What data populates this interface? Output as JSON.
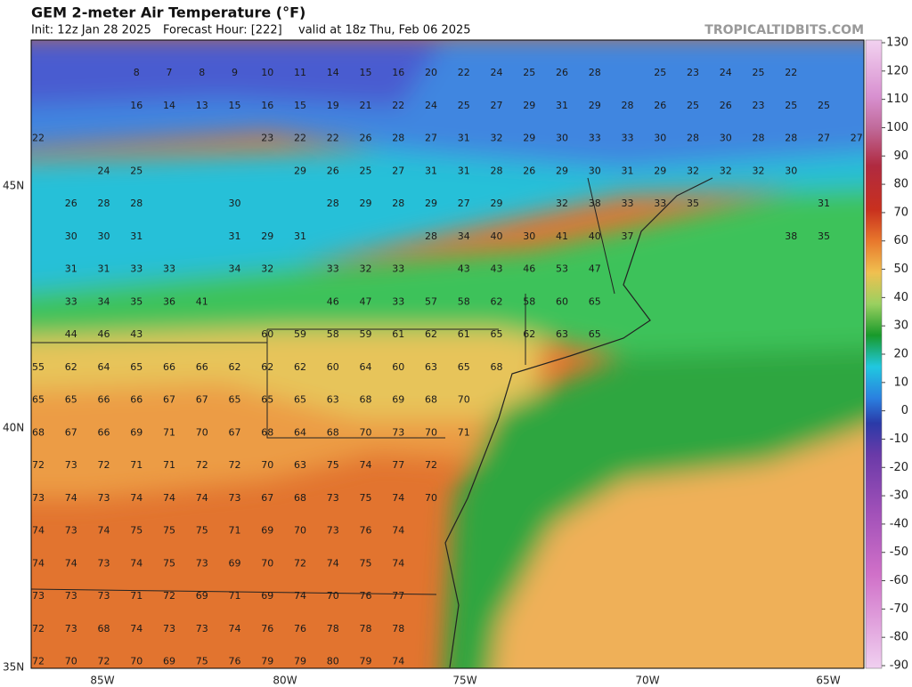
{
  "header": {
    "title": "GEM 2-meter Air Temperature (°F)",
    "init": "Init: 12z Jan 28 2025",
    "forecast_hour": "Forecast Hour: [222]",
    "valid": "valid at 18z Thu, Feb 06 2025",
    "watermark": "TROPICALTIDBITS.COM"
  },
  "map": {
    "lat_labels": [
      "45N",
      "40N",
      "35N"
    ],
    "lon_labels": [
      "85W",
      "80W",
      "75W",
      "70W",
      "65W"
    ],
    "rows": [
      [
        null,
        null,
        null,
        8,
        7,
        8,
        9,
        10,
        11,
        14,
        15,
        16,
        20,
        22,
        24,
        25,
        26,
        28,
        null,
        25,
        23,
        24,
        25,
        22,
        null,
        null
      ],
      [
        null,
        null,
        null,
        16,
        14,
        13,
        15,
        16,
        15,
        19,
        21,
        22,
        24,
        25,
        27,
        29,
        31,
        29,
        28,
        26,
        25,
        26,
        23,
        25,
        25,
        null
      ],
      [
        22,
        null,
        null,
        null,
        null,
        null,
        null,
        23,
        22,
        22,
        26,
        28,
        27,
        31,
        32,
        29,
        30,
        33,
        33,
        30,
        28,
        30,
        28,
        28,
        27,
        27
      ],
      [
        null,
        null,
        24,
        25,
        null,
        null,
        null,
        null,
        29,
        26,
        25,
        27,
        31,
        31,
        28,
        26,
        29,
        30,
        31,
        29,
        32,
        32,
        32,
        30,
        null,
        null
      ],
      [
        null,
        26,
        28,
        28,
        null,
        null,
        30,
        null,
        null,
        28,
        29,
        28,
        29,
        27,
        29,
        null,
        32,
        38,
        33,
        33,
        35,
        null,
        null,
        null,
        31,
        null
      ],
      [
        null,
        30,
        30,
        31,
        null,
        null,
        31,
        29,
        31,
        null,
        null,
        null,
        28,
        34,
        40,
        30,
        41,
        40,
        37,
        null,
        null,
        null,
        null,
        38,
        35,
        null
      ],
      [
        null,
        31,
        31,
        33,
        33,
        null,
        34,
        32,
        null,
        33,
        32,
        33,
        null,
        43,
        43,
        46,
        53,
        47,
        null,
        null,
        null,
        null,
        null,
        null,
        null,
        null
      ],
      [
        null,
        33,
        34,
        35,
        36,
        41,
        null,
        null,
        null,
        46,
        47,
        33,
        57,
        58,
        62,
        58,
        60,
        65,
        null,
        null,
        null,
        null,
        null,
        null,
        null,
        null
      ],
      [
        null,
        44,
        46,
        43,
        null,
        null,
        null,
        60,
        59,
        58,
        59,
        61,
        62,
        61,
        65,
        62,
        63,
        65,
        null,
        null,
        null,
        null,
        null,
        null,
        null,
        null
      ],
      [
        55,
        62,
        64,
        65,
        66,
        66,
        62,
        62,
        62,
        60,
        64,
        60,
        63,
        65,
        68,
        null,
        null,
        null,
        null,
        null,
        null,
        null,
        null,
        null,
        null,
        null
      ],
      [
        65,
        65,
        66,
        66,
        67,
        67,
        65,
        65,
        65,
        63,
        68,
        69,
        68,
        70,
        null,
        null,
        null,
        null,
        null,
        null,
        null,
        null,
        null,
        null,
        null,
        null
      ],
      [
        68,
        67,
        66,
        69,
        71,
        70,
        67,
        68,
        64,
        68,
        70,
        73,
        70,
        71,
        null,
        null,
        null,
        null,
        null,
        null,
        null,
        null,
        null,
        null,
        null,
        null
      ],
      [
        72,
        73,
        72,
        71,
        71,
        72,
        72,
        70,
        63,
        75,
        74,
        77,
        72,
        null,
        null,
        null,
        null,
        null,
        null,
        null,
        null,
        null,
        null,
        null,
        null,
        null
      ],
      [
        73,
        74,
        73,
        74,
        74,
        74,
        73,
        67,
        68,
        73,
        75,
        74,
        70,
        null,
        null,
        null,
        null,
        null,
        null,
        null,
        null,
        null,
        null,
        null,
        null,
        null
      ],
      [
        74,
        73,
        74,
        75,
        75,
        75,
        71,
        69,
        70,
        73,
        76,
        74,
        null,
        null,
        null,
        null,
        null,
        null,
        null,
        null,
        null,
        null,
        null,
        null,
        null,
        null
      ],
      [
        74,
        74,
        73,
        74,
        75,
        73,
        69,
        70,
        72,
        74,
        75,
        74,
        null,
        null,
        null,
        null,
        null,
        null,
        null,
        null,
        null,
        null,
        null,
        null,
        null,
        null
      ],
      [
        73,
        73,
        73,
        71,
        72,
        69,
        71,
        69,
        74,
        70,
        76,
        77,
        null,
        null,
        null,
        null,
        null,
        null,
        null,
        null,
        null,
        null,
        null,
        null,
        null,
        null
      ],
      [
        72,
        73,
        68,
        74,
        73,
        73,
        74,
        76,
        76,
        78,
        78,
        78,
        null,
        null,
        null,
        null,
        null,
        null,
        null,
        null,
        null,
        null,
        null,
        null,
        null,
        null
      ],
      [
        72,
        70,
        72,
        70,
        69,
        75,
        76,
        79,
        79,
        80,
        79,
        74,
        null,
        null,
        null,
        null,
        null,
        null,
        null,
        null,
        null,
        null,
        null,
        null,
        null,
        null
      ]
    ]
  },
  "colorbar": {
    "lim": [
      -90,
      130
    ],
    "ticks": [
      130,
      120,
      110,
      100,
      90,
      80,
      70,
      60,
      50,
      40,
      30,
      20,
      10,
      0,
      -10,
      -20,
      -30,
      -40,
      -50,
      -60,
      -70,
      -80,
      -90
    ]
  }
}
